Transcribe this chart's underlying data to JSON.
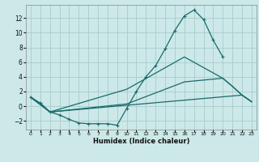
{
  "title": "",
  "xlabel": "Humidex (Indice chaleur)",
  "ylabel": "",
  "bg_color": "#cce8e8",
  "grid_color": "#aacccc",
  "line_color": "#1a6b6b",
  "xlim": [
    -0.5,
    23.5
  ],
  "ylim": [
    -3.2,
    13.8
  ],
  "yticks": [
    -2,
    0,
    2,
    4,
    6,
    8,
    10,
    12
  ],
  "xticks": [
    0,
    1,
    2,
    3,
    4,
    5,
    6,
    7,
    8,
    9,
    10,
    11,
    12,
    13,
    14,
    15,
    16,
    17,
    18,
    19,
    20,
    21,
    22,
    23
  ],
  "line1_x": [
    0,
    1,
    2,
    3,
    4,
    5,
    6,
    7,
    8,
    9,
    10,
    11,
    12,
    13,
    14,
    15,
    16,
    17,
    18,
    19,
    20
  ],
  "line1_y": [
    1.2,
    0.4,
    -0.8,
    -1.2,
    -1.8,
    -2.3,
    -2.4,
    -2.4,
    -2.4,
    -2.6,
    -0.3,
    2.0,
    4.0,
    5.5,
    7.8,
    10.3,
    12.3,
    13.1,
    11.8,
    9.0,
    6.7
  ],
  "line2_x": [
    0,
    1,
    2,
    22,
    23
  ],
  "line2_y": [
    1.2,
    0.4,
    -0.8,
    1.5,
    0.6
  ],
  "line3_x": [
    0,
    2,
    10,
    16,
    20,
    21,
    22,
    23
  ],
  "line3_y": [
    1.2,
    -0.8,
    2.3,
    6.7,
    3.8,
    2.7,
    1.5,
    0.6
  ],
  "line4_x": [
    0,
    2,
    10,
    16,
    20,
    21,
    22,
    23
  ],
  "line4_y": [
    1.2,
    -0.8,
    0.3,
    3.3,
    3.8,
    2.7,
    1.5,
    0.6
  ]
}
